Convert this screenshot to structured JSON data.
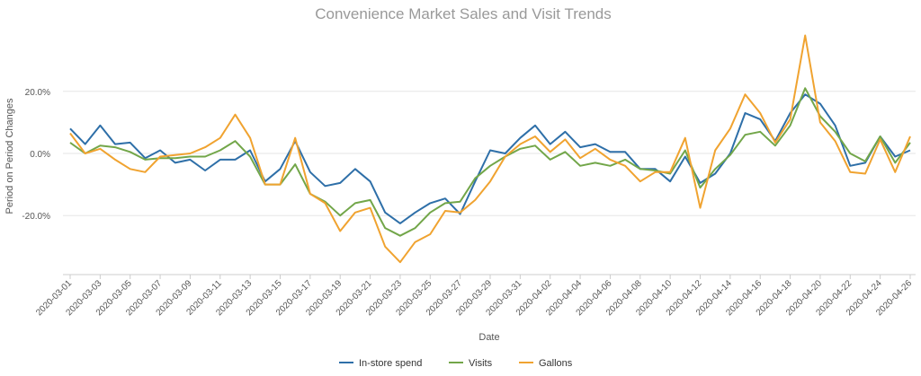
{
  "chart_data": {
    "type": "line",
    "title": "Convenience Market Sales and Visit Trends",
    "xlabel": "Date",
    "ylabel": "Period on Period Changes",
    "ylim": [
      -0.39,
      0.39
    ],
    "yticks": [
      {
        "value": 0.2,
        "label": "20.0%"
      },
      {
        "value": 0.0,
        "label": "0.0%"
      },
      {
        "value": -0.2,
        "label": "-20.0%"
      }
    ],
    "x": [
      "2020-03-01",
      "2020-03-02",
      "2020-03-03",
      "2020-03-04",
      "2020-03-05",
      "2020-03-06",
      "2020-03-07",
      "2020-03-08",
      "2020-03-09",
      "2020-03-10",
      "2020-03-11",
      "2020-03-12",
      "2020-03-13",
      "2020-03-14",
      "2020-03-15",
      "2020-03-16",
      "2020-03-17",
      "2020-03-18",
      "2020-03-19",
      "2020-03-20",
      "2020-03-21",
      "2020-03-22",
      "2020-03-23",
      "2020-03-24",
      "2020-03-25",
      "2020-03-26",
      "2020-03-27",
      "2020-03-28",
      "2020-03-29",
      "2020-03-30",
      "2020-03-31",
      "2020-04-01",
      "2020-04-02",
      "2020-04-03",
      "2020-04-04",
      "2020-04-05",
      "2020-04-06",
      "2020-04-07",
      "2020-04-08",
      "2020-04-09",
      "2020-04-10",
      "2020-04-11",
      "2020-04-12",
      "2020-04-13",
      "2020-04-14",
      "2020-04-15",
      "2020-04-16",
      "2020-04-17",
      "2020-04-18",
      "2020-04-19",
      "2020-04-20",
      "2020-04-21",
      "2020-04-22",
      "2020-04-23",
      "2020-04-24",
      "2020-04-25",
      "2020-04-26"
    ],
    "xtick_labels": [
      "2020-03-01",
      "2020-03-03",
      "2020-03-05",
      "2020-03-07",
      "2020-03-09",
      "2020-03-11",
      "2020-03-13",
      "2020-03-15",
      "2020-03-17",
      "2020-03-19",
      "2020-03-21",
      "2020-03-23",
      "2020-03-25",
      "2020-03-27",
      "2020-03-29",
      "2020-03-31",
      "2020-04-02",
      "2020-04-04",
      "2020-04-06",
      "2020-04-08",
      "2020-04-10",
      "2020-04-12",
      "2020-04-14",
      "2020-04-16",
      "2020-04-18",
      "2020-04-20",
      "2020-04-22",
      "2020-04-24",
      "2020-04-26"
    ],
    "grid": "horizontal",
    "legend_position": "bottom",
    "series": [
      {
        "name": "In-store spend",
        "color": "#2e6fa8",
        "values": [
          0.08,
          0.03,
          0.09,
          0.03,
          0.035,
          -0.015,
          0.01,
          -0.03,
          -0.02,
          -0.055,
          -0.02,
          -0.02,
          0.01,
          -0.09,
          -0.05,
          0.04,
          -0.06,
          -0.105,
          -0.095,
          -0.05,
          -0.09,
          -0.19,
          -0.225,
          -0.19,
          -0.16,
          -0.145,
          -0.195,
          -0.09,
          0.01,
          0.0,
          0.05,
          0.09,
          0.03,
          0.07,
          0.02,
          0.03,
          0.005,
          0.005,
          -0.05,
          -0.05,
          -0.09,
          -0.01,
          -0.095,
          -0.065,
          0.0,
          0.13,
          0.11,
          0.04,
          0.13,
          0.19,
          0.16,
          0.09,
          -0.04,
          -0.03,
          0.055,
          -0.01,
          0.01
        ]
      },
      {
        "name": "Visits",
        "color": "#72a649",
        "values": [
          0.035,
          0.0,
          0.025,
          0.02,
          0.005,
          -0.02,
          -0.015,
          -0.015,
          -0.01,
          -0.01,
          0.01,
          0.04,
          -0.01,
          -0.1,
          -0.1,
          -0.035,
          -0.13,
          -0.155,
          -0.2,
          -0.16,
          -0.15,
          -0.24,
          -0.265,
          -0.24,
          -0.19,
          -0.16,
          -0.155,
          -0.08,
          -0.04,
          -0.01,
          0.015,
          0.025,
          -0.02,
          0.005,
          -0.04,
          -0.03,
          -0.04,
          -0.02,
          -0.05,
          -0.055,
          -0.065,
          0.01,
          -0.11,
          -0.05,
          -0.005,
          0.06,
          0.07,
          0.025,
          0.09,
          0.21,
          0.12,
          0.07,
          0.0,
          -0.025,
          0.055,
          -0.03,
          0.035
        ]
      },
      {
        "name": "Gallons",
        "color": "#f0a330",
        "values": [
          0.065,
          0.0,
          0.015,
          -0.02,
          -0.05,
          -0.06,
          -0.01,
          -0.005,
          0.0,
          0.02,
          0.05,
          0.125,
          0.05,
          -0.1,
          -0.1,
          0.05,
          -0.13,
          -0.16,
          -0.25,
          -0.19,
          -0.175,
          -0.3,
          -0.35,
          -0.285,
          -0.26,
          -0.185,
          -0.19,
          -0.15,
          -0.09,
          -0.01,
          0.03,
          0.055,
          0.005,
          0.045,
          -0.015,
          0.015,
          -0.02,
          -0.04,
          -0.09,
          -0.06,
          -0.06,
          0.05,
          -0.175,
          0.01,
          0.08,
          0.19,
          0.13,
          0.035,
          0.11,
          0.38,
          0.1,
          0.04,
          -0.06,
          -0.065,
          0.045,
          -0.06,
          0.055
        ]
      }
    ]
  }
}
